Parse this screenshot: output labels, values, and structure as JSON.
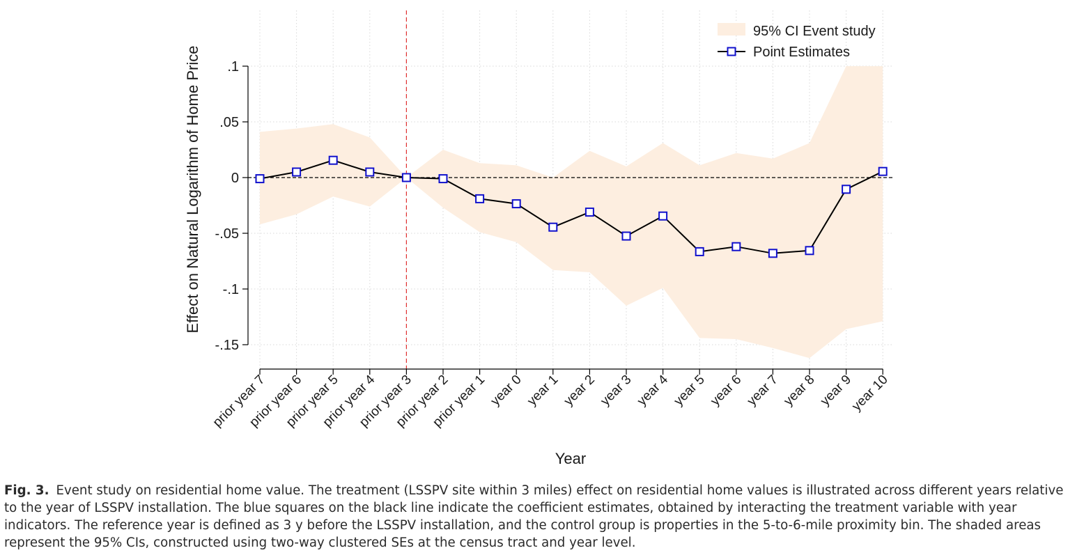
{
  "chart_data": {
    "type": "line",
    "xlabel": "Year",
    "ylabel": "Effect on Natural Logarithm of Home Price",
    "categories": [
      "prior year 7",
      "prior year 6",
      "prior year 5",
      "prior year 4",
      "prior year 3",
      "prior year 2",
      "prior year 1",
      "year 0",
      "year 1",
      "year 2",
      "year 3",
      "year 4",
      "year 5",
      "year 6",
      "year 7",
      "year 8",
      "year 9",
      "year 10"
    ],
    "yticks": [
      0.1,
      0.05,
      0,
      -0.05,
      -0.1,
      -0.15
    ],
    "ytick_labels": [
      ".1",
      ".05",
      "0",
      "-.05",
      "-.1",
      "-.15"
    ],
    "ylim": [
      -0.17,
      0.15
    ],
    "reference_line_at": "prior year 3",
    "zero_line": true,
    "grid": true,
    "legend_position": "top-right",
    "series": [
      {
        "name": "Point Estimates",
        "type": "line",
        "color": "#000000",
        "marker_color": "#1010cc",
        "marker": "hollow-square",
        "values": [
          -0.001,
          0.005,
          0.0155,
          0.005,
          0.0,
          -0.001,
          -0.019,
          -0.0235,
          -0.0445,
          -0.031,
          -0.0525,
          -0.0345,
          -0.0665,
          -0.062,
          -0.068,
          -0.0655,
          -0.0105,
          0.0055
        ]
      },
      {
        "name": "95% CI Event study",
        "type": "area-band",
        "color": "#fdeee0",
        "lower": [
          -0.042,
          -0.033,
          -0.017,
          -0.026,
          0.0,
          -0.027,
          -0.049,
          -0.058,
          -0.083,
          -0.085,
          -0.115,
          -0.099,
          -0.144,
          -0.145,
          -0.153,
          -0.162,
          -0.136,
          -0.129
        ],
        "upper": [
          0.041,
          0.044,
          0.048,
          0.036,
          0.0,
          0.025,
          0.013,
          0.011,
          0.0,
          0.024,
          0.01,
          0.031,
          0.011,
          0.022,
          0.017,
          0.031,
          0.1,
          0.1
        ]
      }
    ]
  },
  "caption": {
    "label": "Fig. 3.",
    "text": "Event study on residential home value. The treatment (LSSPV site within 3 miles) effect on residential home values is illustrated across different years relative to the year of LSSPV installation. The blue squares on the black line indicate the coefficient estimates, obtained by interacting the treatment variable with year indicators. The reference year is defined as 3 y before the LSSPV installation, and the control group is properties in the 5-to-6-mile proximity bin. The shaded areas represent the 95% CIs, constructed using two-way clustered SEs at the census tract and year level."
  }
}
